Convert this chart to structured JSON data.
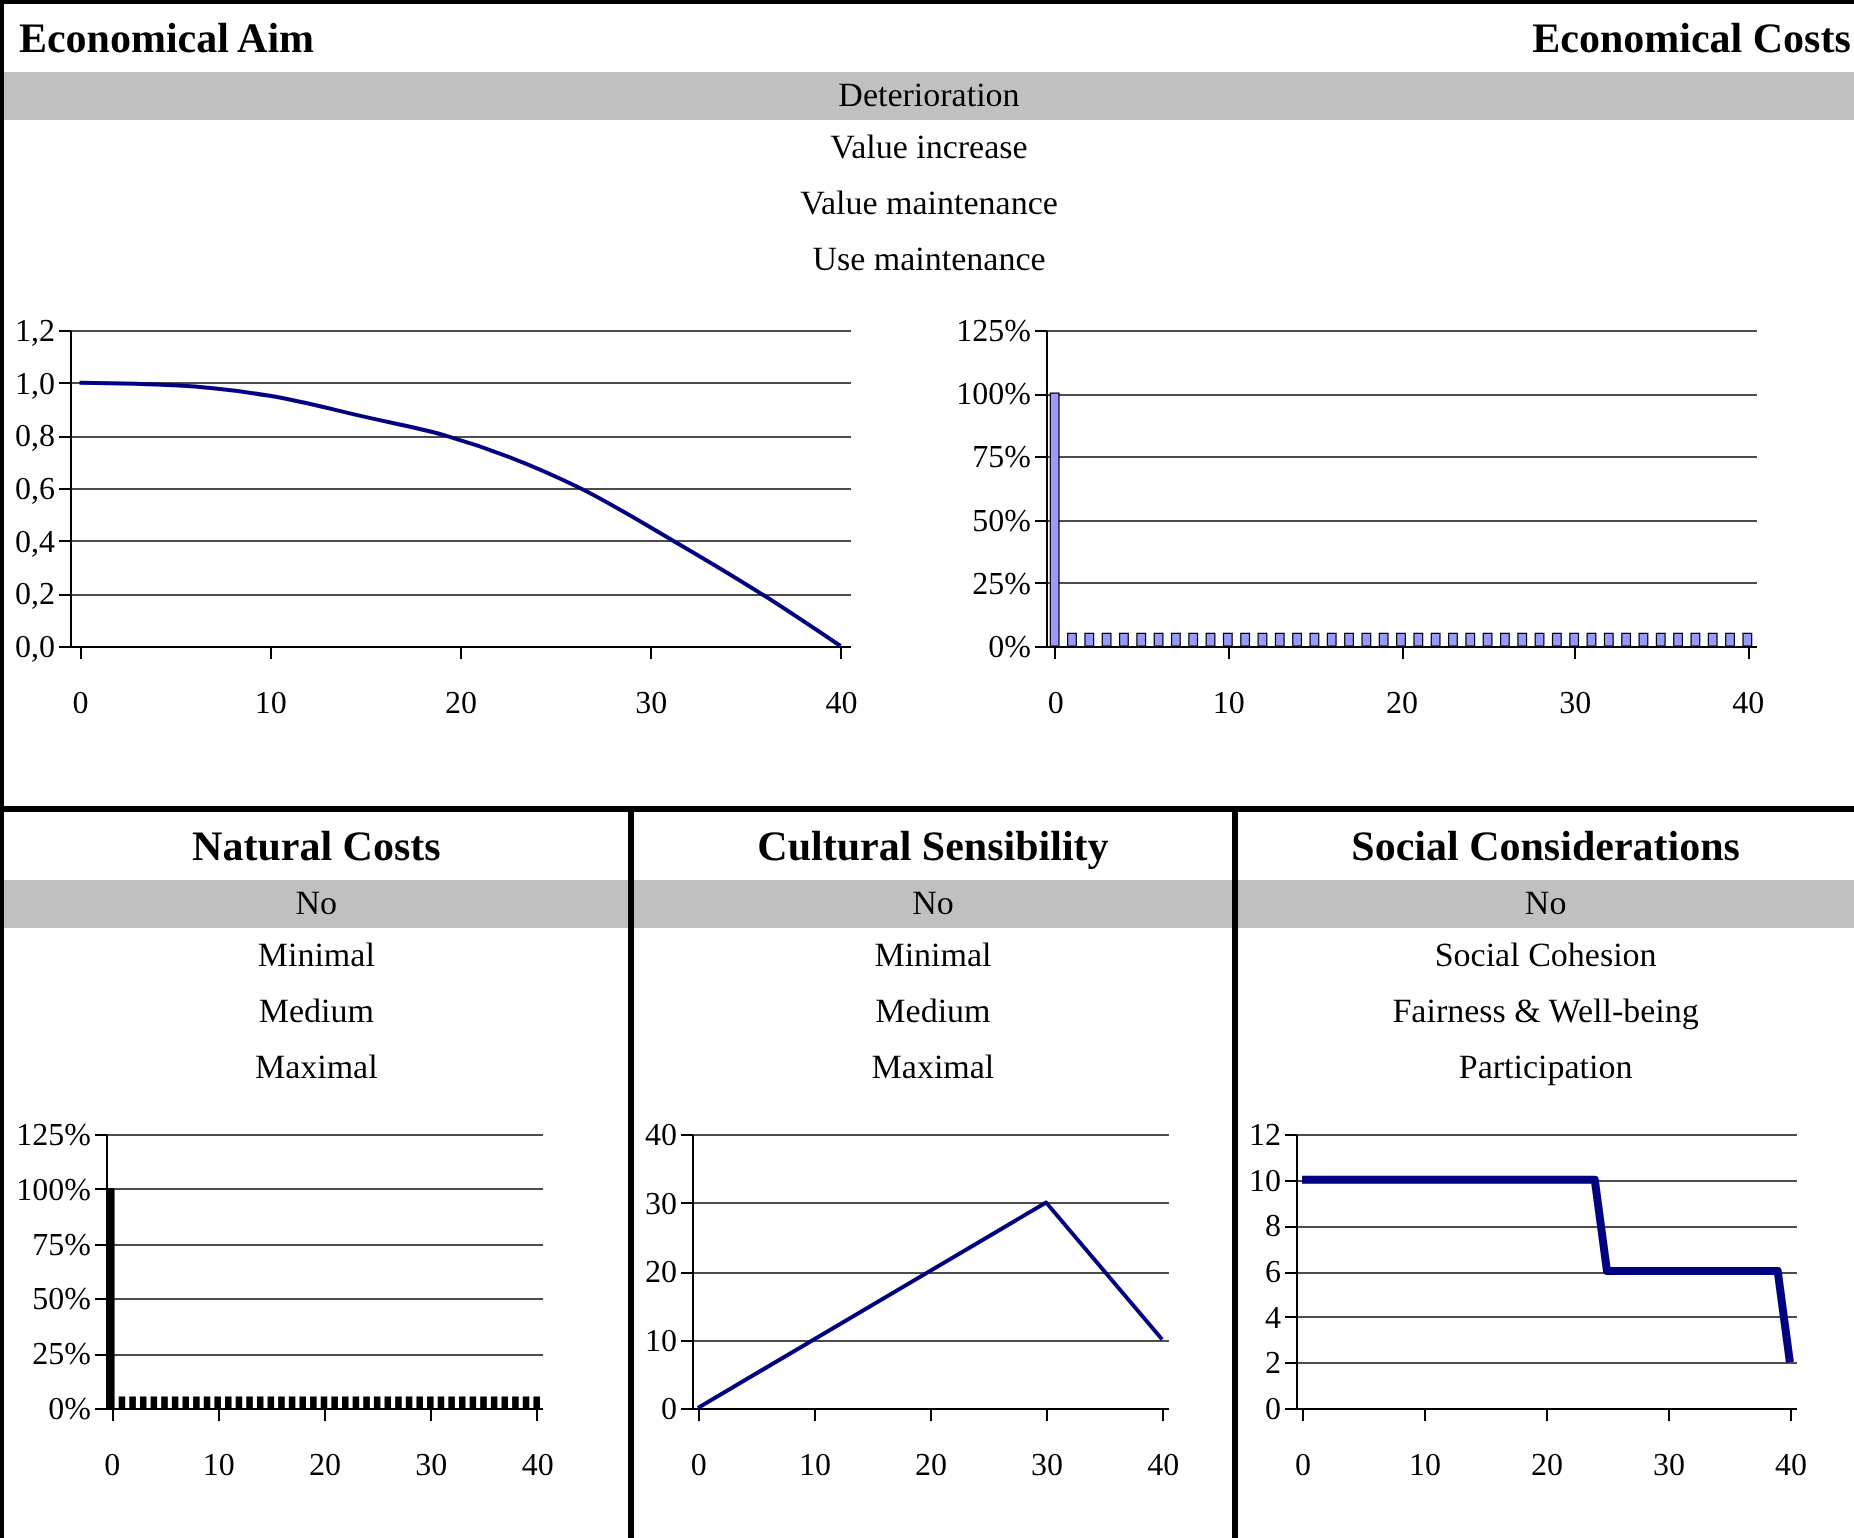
{
  "chart_data": [
    {
      "type": "line",
      "title": "Economical Aim",
      "subtitle": "Deterioration",
      "annotations": [
        "Value increase",
        "Value maintenance",
        "Use maintenance"
      ],
      "x": [
        0,
        5,
        10,
        15,
        19.2,
        26.3,
        31.2,
        35.8,
        40
      ],
      "values": [
        1.0,
        0.99,
        0.95,
        0.87,
        0.8,
        0.6,
        0.4,
        0.2,
        0.0
      ],
      "color": "#000080",
      "xlim": [
        -0.5,
        40.5
      ],
      "xticks": [
        0,
        10,
        20,
        30,
        40
      ],
      "ylim": [
        0,
        1.2
      ],
      "yticks": [
        {
          "value": 0,
          "label": "0,0"
        },
        {
          "value": 0.2,
          "label": "0,2"
        },
        {
          "value": 0.4,
          "label": "0,4"
        },
        {
          "value": 0.6,
          "label": "0,6"
        },
        {
          "value": 0.8,
          "label": "0,8"
        },
        {
          "value": 1.0,
          "label": "1,0"
        },
        {
          "value": 1.2,
          "label": "1,2"
        }
      ],
      "grid": "y"
    },
    {
      "type": "bar",
      "title": "Economical Costs",
      "x": [
        0,
        1,
        2,
        3,
        4,
        5,
        6,
        7,
        8,
        9,
        10,
        11,
        12,
        13,
        14,
        15,
        16,
        17,
        18,
        19,
        20,
        21,
        22,
        23,
        24,
        25,
        26,
        27,
        28,
        29,
        30,
        31,
        32,
        33,
        34,
        35,
        36,
        37,
        38,
        39,
        40
      ],
      "values": [
        100,
        5,
        5,
        5,
        5,
        5,
        5,
        5,
        5,
        5,
        5,
        5,
        5,
        5,
        5,
        5,
        5,
        5,
        5,
        5,
        5,
        5,
        5,
        5,
        5,
        5,
        5,
        5,
        5,
        5,
        5,
        5,
        5,
        5,
        5,
        5,
        5,
        5,
        5,
        5,
        5
      ],
      "color": "#9999ff",
      "xlim": [
        -0.5,
        40.5
      ],
      "xticks": [
        0,
        10,
        20,
        30,
        40
      ],
      "ylim": [
        0,
        125
      ],
      "yticks": [
        {
          "value": 0,
          "label": "0%"
        },
        {
          "value": 25,
          "label": "25%"
        },
        {
          "value": 50,
          "label": "50%"
        },
        {
          "value": 75,
          "label": "75%"
        },
        {
          "value": 100,
          "label": "100%"
        },
        {
          "value": 125,
          "label": "125%"
        }
      ],
      "grid": "y"
    },
    {
      "type": "bar",
      "title": "Natural Costs",
      "subtitle": "No",
      "annotations": [
        "Minimal",
        "Medium",
        "Maximal"
      ],
      "x": [
        0,
        1,
        2,
        3,
        4,
        5,
        6,
        7,
        8,
        9,
        10,
        11,
        12,
        13,
        14,
        15,
        16,
        17,
        18,
        19,
        20,
        21,
        22,
        23,
        24,
        25,
        26,
        27,
        28,
        29,
        30,
        31,
        32,
        33,
        34,
        35,
        36,
        37,
        38,
        39,
        40
      ],
      "values": [
        100,
        5,
        5,
        5,
        5,
        5,
        5,
        5,
        5,
        5,
        5,
        5,
        5,
        5,
        5,
        5,
        5,
        5,
        5,
        5,
        5,
        5,
        5,
        5,
        5,
        5,
        5,
        5,
        5,
        5,
        5,
        5,
        5,
        5,
        5,
        5,
        5,
        5,
        5,
        5,
        5
      ],
      "color": "#000000",
      "xlim": [
        -0.5,
        40.5
      ],
      "xticks": [
        0,
        10,
        20,
        30,
        40
      ],
      "ylim": [
        0,
        125
      ],
      "yticks": [
        {
          "value": 0,
          "label": "0%"
        },
        {
          "value": 25,
          "label": "25%"
        },
        {
          "value": 50,
          "label": "50%"
        },
        {
          "value": 75,
          "label": "75%"
        },
        {
          "value": 100,
          "label": "100%"
        },
        {
          "value": 125,
          "label": "125%"
        }
      ],
      "grid": "y"
    },
    {
      "type": "line",
      "title": "Cultural Sensibility",
      "subtitle": "No",
      "annotations": [
        "Minimal",
        "Medium",
        "Maximal"
      ],
      "x": [
        0,
        30,
        40
      ],
      "values": [
        0,
        30,
        10
      ],
      "color": "#000080",
      "xlim": [
        -0.5,
        40.5
      ],
      "xticks": [
        0,
        10,
        20,
        30,
        40
      ],
      "ylim": [
        0,
        40
      ],
      "yticks": [
        0,
        10,
        20,
        30,
        40
      ],
      "grid": "y"
    },
    {
      "type": "line",
      "title": "Social Considerations",
      "subtitle": "No",
      "annotations": [
        "Social Cohesion",
        "Fairness & Well-being",
        "Participation"
      ],
      "x": [
        0,
        24,
        25,
        39,
        40
      ],
      "values": [
        10,
        10,
        6,
        6,
        2
      ],
      "color": "#000080",
      "xlim": [
        -0.5,
        40.5
      ],
      "xticks": [
        0,
        10,
        20,
        30,
        40
      ],
      "ylim": [
        0,
        12
      ],
      "yticks": [
        0,
        2,
        4,
        6,
        8,
        10,
        12
      ],
      "grid": "y"
    }
  ]
}
